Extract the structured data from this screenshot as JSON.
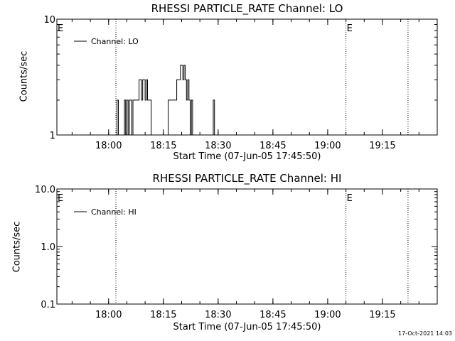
{
  "footer_timestamp": "17-Oct-2021 14:03",
  "colors": {
    "axes": "#000000",
    "background": "#ffffff"
  },
  "chart_data": [
    {
      "type": "line",
      "title": "RHESSI PARTICLE_RATE Channel: LO",
      "xlabel": "Start Time (07-Jun-05 17:45:50)",
      "ylabel": "Counts/sec",
      "yscale": "log",
      "ylim": [
        1,
        10
      ],
      "yticks": [
        {
          "v": 1,
          "label": "1"
        },
        {
          "v": 10,
          "label": "10"
        }
      ],
      "xlim": [
        "17:45:50",
        "19:30:00"
      ],
      "xticks": [
        "18:00",
        "18:15",
        "18:30",
        "18:45",
        "19:00",
        "19:15"
      ],
      "legend": {
        "entry": "Channel: LO",
        "placement": "top-left"
      },
      "vlines": [
        "18:02",
        "19:05",
        "19:22"
      ],
      "vline_labels": [
        {
          "at": "17:45:50",
          "text": "E"
        },
        {
          "at": "19:05",
          "text": "E"
        }
      ],
      "series": [
        {
          "name": "Channel: LO",
          "points": [
            [
              "18:02:00",
              1
            ],
            [
              "18:02:20",
              2
            ],
            [
              "18:02:40",
              1
            ],
            [
              "18:04:00",
              1
            ],
            [
              "18:04:20",
              2
            ],
            [
              "18:04:40",
              1
            ],
            [
              "18:05:00",
              2
            ],
            [
              "18:05:20",
              1
            ],
            [
              "18:05:40",
              2
            ],
            [
              "18:06:00",
              2
            ],
            [
              "18:06:20",
              1
            ],
            [
              "18:06:40",
              2
            ],
            [
              "18:07:00",
              2
            ],
            [
              "18:08:00",
              2
            ],
            [
              "18:08:20",
              3
            ],
            [
              "18:09:00",
              2
            ],
            [
              "18:09:20",
              3
            ],
            [
              "18:10:00",
              2
            ],
            [
              "18:10:20",
              3
            ],
            [
              "18:10:40",
              2
            ],
            [
              "18:11:20",
              2
            ],
            [
              "18:11:40",
              1
            ],
            [
              "18:16:00",
              1
            ],
            [
              "18:16:20",
              2
            ],
            [
              "18:17:00",
              2
            ],
            [
              "18:18:20",
              2
            ],
            [
              "18:18:40",
              3
            ],
            [
              "18:19:20",
              3
            ],
            [
              "18:19:40",
              4
            ],
            [
              "18:20:20",
              3
            ],
            [
              "18:20:40",
              4
            ],
            [
              "18:21:00",
              3
            ],
            [
              "18:21:20",
              2
            ],
            [
              "18:21:40",
              3
            ],
            [
              "18:22:00",
              2
            ],
            [
              "18:22:20",
              1
            ],
            [
              "18:22:40",
              2
            ],
            [
              "18:23:00",
              1
            ],
            [
              "18:28:20",
              1
            ],
            [
              "18:28:40",
              2
            ],
            [
              "18:29:00",
              1
            ]
          ]
        }
      ]
    },
    {
      "type": "line",
      "title": "RHESSI PARTICLE_RATE Channel: HI",
      "xlabel": "Start Time (07-Jun-05 17:45:50)",
      "ylabel": "Counts/sec",
      "yscale": "log",
      "ylim": [
        0.1,
        10
      ],
      "yticks": [
        {
          "v": 0.1,
          "label": "0.1"
        },
        {
          "v": 1,
          "label": "1.0"
        },
        {
          "v": 10,
          "label": "10.0"
        }
      ],
      "xlim": [
        "17:45:50",
        "19:30:00"
      ],
      "xticks": [
        "18:00",
        "18:15",
        "18:30",
        "18:45",
        "19:00",
        "19:15"
      ],
      "legend": {
        "entry": "Channel: HI",
        "placement": "top-left"
      },
      "vlines": [
        "18:02",
        "19:05",
        "19:22"
      ],
      "vline_labels": [
        {
          "at": "17:45:50",
          "text": "E"
        },
        {
          "at": "19:05",
          "text": "E"
        }
      ],
      "series": [
        {
          "name": "Channel: HI",
          "points": []
        }
      ]
    }
  ]
}
